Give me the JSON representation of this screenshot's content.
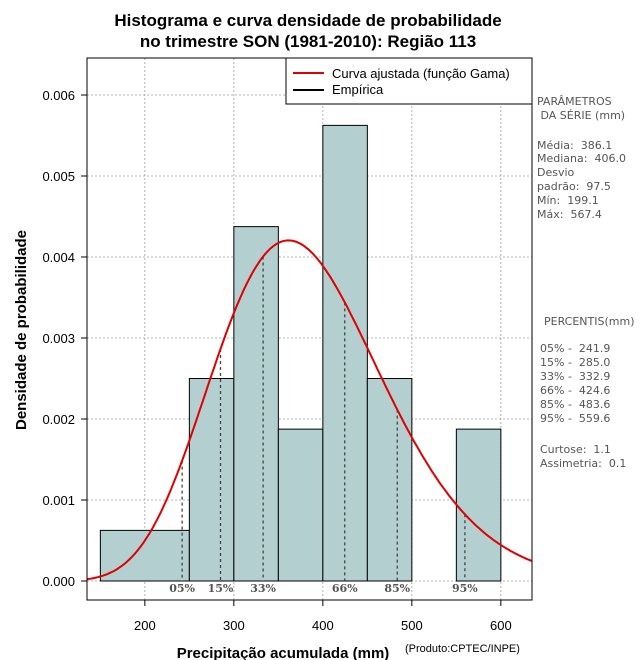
{
  "chart_data": {
    "type": "bar",
    "title_line1": "Histograma e curva densidade de probabilidade",
    "title_line2": "no trimestre SON (1981-2010): Região 113",
    "xlabel": "Precipitação acumulada (mm)",
    "ylabel": "Densidade de probabilidade",
    "credit": "(Produto:CPTEC/INPE)",
    "xlim": [
      135,
      635
    ],
    "ylim": [
      0,
      0.0062
    ],
    "xticks": [
      200,
      300,
      400,
      500,
      600
    ],
    "yticks": [
      0.0,
      0.001,
      0.002,
      0.003,
      0.004,
      0.005,
      0.006
    ],
    "ytick_labels": [
      "0.000",
      "0.001",
      "0.002",
      "0.003",
      "0.004",
      "0.005",
      "0.006"
    ],
    "bins": [
      {
        "start": 150,
        "end": 250,
        "density": 0.000625
      },
      {
        "start": 250,
        "end": 300,
        "density": 0.0025
      },
      {
        "start": 300,
        "end": 350,
        "density": 0.004375
      },
      {
        "start": 350,
        "end": 400,
        "density": 0.001875
      },
      {
        "start": 400,
        "end": 450,
        "density": 0.005625
      },
      {
        "start": 450,
        "end": 500,
        "density": 0.0025
      },
      {
        "start": 550,
        "end": 600,
        "density": 0.001875
      }
    ],
    "gamma_fit": {
      "mean": 386.1,
      "sd": 97.5
    },
    "percentiles": [
      {
        "label": "05%",
        "value": 241.9
      },
      {
        "label": "15%",
        "value": 285.0
      },
      {
        "label": "33%",
        "value": 332.9
      },
      {
        "label": "66%",
        "value": 424.6
      },
      {
        "label": "85%",
        "value": 483.6
      },
      {
        "label": "95%",
        "value": 559.6
      }
    ],
    "legend": {
      "fit_label": "Curva ajustada (função Gama)",
      "empirical_label": "Empírica",
      "placement": "top-right"
    },
    "colors": {
      "bar_fill": "#b4cfcf",
      "curve": "#e00000",
      "grid": "#a0a0a0",
      "percentile_line": "#444444"
    }
  },
  "side_panel": {
    "params_title1": "PARÂMETROS",
    "params_title2": " DA SÉRIE (mm)",
    "media": "Média:  386.1",
    "mediana": "Mediana:  406.0",
    "desvio": "Desvio",
    "padrao": "padrão:  97.5",
    "min": "Mín:  199.1",
    "max": "Máx:  567.4",
    "pct_title": "PERCENTIS(mm)",
    "p05": "05% -  241.9",
    "p15": "15% -  285.0",
    "p33": "33% -  332.9",
    "p66": "66% -  424.6",
    "p85": "85% -  483.6",
    "p95": "95% -  559.6",
    "curtose": "Curtose:  1.1",
    "assimetria": "Assimetria:  0.1"
  }
}
